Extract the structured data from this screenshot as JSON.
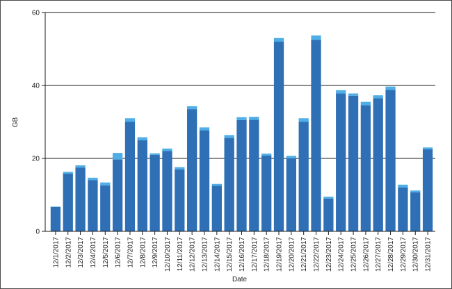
{
  "chart_data": {
    "type": "bar",
    "stacked": true,
    "title": "",
    "xlabel": "Date",
    "ylabel": "GB",
    "ylim": [
      0,
      60
    ],
    "yticks": [
      "0",
      "20",
      "40",
      "60"
    ],
    "grid": "horizontal",
    "legend": "none",
    "categories": [
      "12/1/2017",
      "12/2/2017",
      "12/3/2017",
      "12/4/2017",
      "12/5/2017",
      "12/6/2017",
      "12/7/2017",
      "12/8/2017",
      "12/9/2017",
      "12/10/2017",
      "12/11/2017",
      "12/12/2017",
      "12/13/2017",
      "12/14/2017",
      "12/15/2017",
      "12/16/2017",
      "12/17/2017",
      "12/18/2017",
      "12/19/2017",
      "12/20/2017",
      "12/21/2017",
      "12/22/2017",
      "12/23/2017",
      "12/24/2017",
      "12/25/2017",
      "12/26/2017",
      "12/27/2017",
      "12/28/2017",
      "12/29/2017",
      "12/30/2017",
      "12/31/2017"
    ],
    "series": [
      {
        "color": "#2e6fb5",
        "values": [
          6.7,
          15.8,
          17.5,
          14.0,
          12.6,
          19.7,
          30.0,
          25.0,
          21.0,
          22.0,
          17.0,
          33.5,
          27.7,
          12.5,
          25.6,
          30.5,
          30.6,
          20.8,
          52.0,
          20.0,
          30.0,
          52.5,
          9.0,
          37.8,
          37.2,
          34.6,
          36.5,
          38.8,
          12.0,
          10.7,
          22.5
        ]
      },
      {
        "color": "#4faee6",
        "values": [
          0.1,
          0.5,
          0.6,
          0.7,
          0.8,
          1.8,
          1.0,
          0.8,
          0.4,
          0.7,
          0.6,
          0.8,
          0.8,
          0.5,
          0.8,
          0.8,
          0.8,
          0.5,
          1.0,
          0.7,
          1.0,
          1.2,
          0.5,
          0.9,
          0.6,
          0.9,
          0.8,
          0.9,
          0.8,
          0.5,
          0.5
        ]
      }
    ]
  }
}
